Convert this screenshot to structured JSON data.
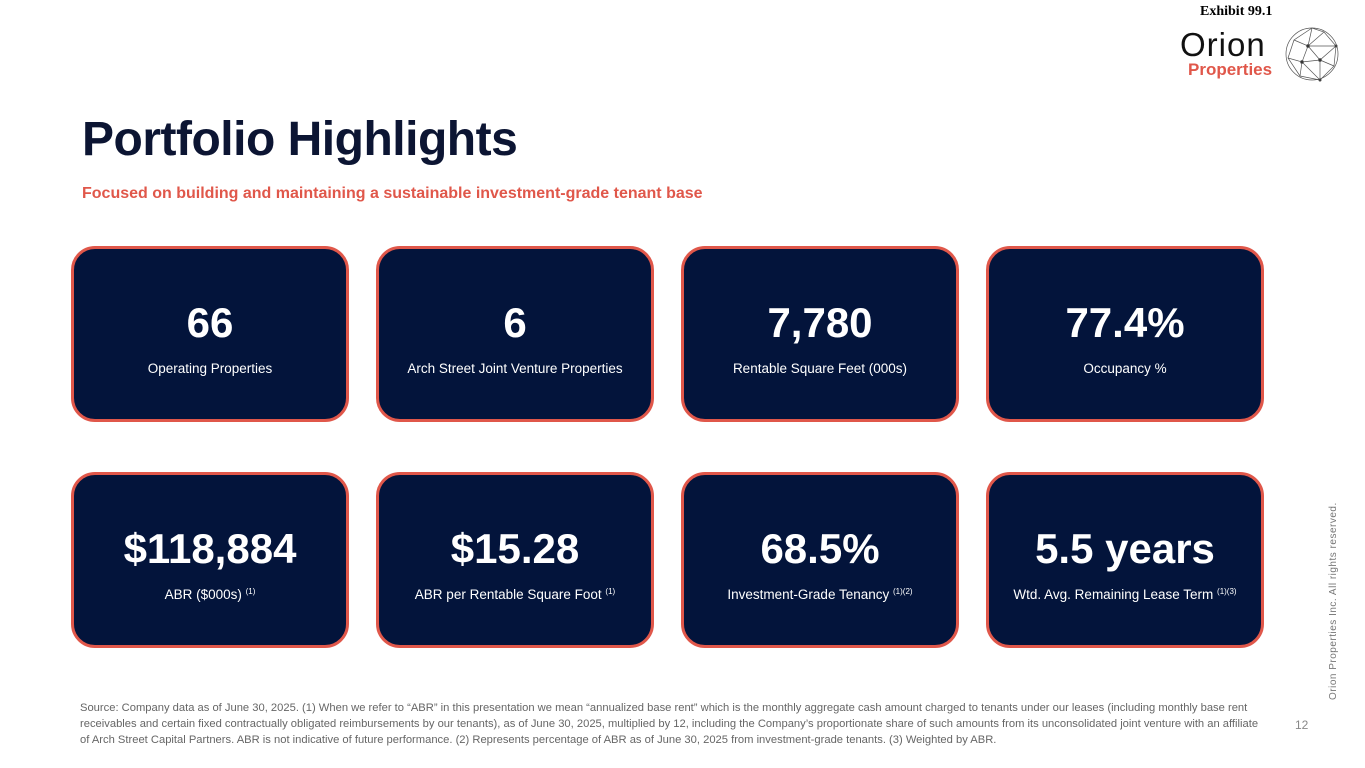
{
  "header": {
    "exhibit": "Exhibit 99.1",
    "logo_name": "Orion",
    "logo_sub": "Properties"
  },
  "title": "Portfolio Highlights",
  "subtitle": "Focused on building and maintaining a sustainable investment-grade tenant base",
  "cards": [
    {
      "value": "66",
      "label": "Operating Properties",
      "note": ""
    },
    {
      "value": "6",
      "label": "Arch Street Joint Venture Properties",
      "note": ""
    },
    {
      "value": "7,780",
      "label": "Rentable Square Feet (000s)",
      "note": ""
    },
    {
      "value": "77.4%",
      "label": "Occupancy %",
      "note": ""
    },
    {
      "value": "$118,884",
      "label": "ABR ($000s)",
      "note": "(1)"
    },
    {
      "value": "$15.28",
      "label": "ABR per Rentable Square Foot",
      "note": "(1)"
    },
    {
      "value": "68.5%",
      "label": "Investment-Grade Tenancy",
      "note": "(1)(2)"
    },
    {
      "value": "5.5 years",
      "label": "Wtd. Avg. Remaining Lease Term",
      "note": "(1)(3)"
    }
  ],
  "footer": {
    "lines": [
      "Source: Company data as of June 30, 2025. (1) When we refer to “ABR” in this presentation we mean “annualized base rent” which is the monthly aggregate cash amount charged to tenants under our leases (including monthly base rent",
      "receivables and certain fixed contractually obligated reimbursements by our tenants), as of June 30, 2025, multiplied by 12, including the Company’s proportionate share of such amounts from its unconsolidated joint venture with an affiliate",
      "of Arch Street Capital Partners. ABR is not indicative of future performance. (2) Represents percentage of ABR as of June 30, 2025 from investment-grade tenants. (3) Weighted by ABR."
    ],
    "page": "12",
    "rights": "Orion Properties Inc. All rights reserved."
  }
}
